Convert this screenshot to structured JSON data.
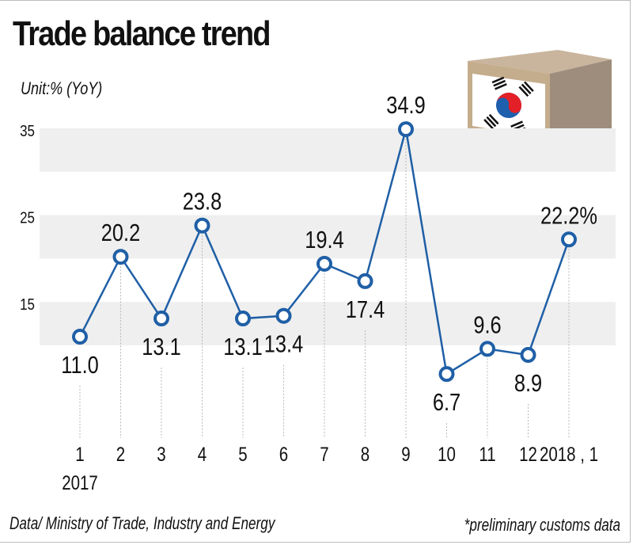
{
  "title": "Trade balance trend",
  "unit_label": "Unit:% (YoY)",
  "source": "Data/ Ministry of Trade, Industry and Energy",
  "footnote": "*preliminary customs data",
  "colors": {
    "line": "#1f5fa6",
    "band": "#efefef",
    "text": "#111111",
    "box_front": "#c4ad8c",
    "box_top": "#c9b49d",
    "box_side": "#9e8c7c",
    "flag_red": "#e32027",
    "flag_blue": "#1e5fae"
  },
  "illustration": {
    "name": "korean-flag-box-icon"
  },
  "chart_data": {
    "type": "line",
    "title": "Trade balance trend",
    "ylabel": "Unit:% (YoY)",
    "xlabel": "",
    "ylim": [
      0,
      35
    ],
    "yticks": [
      35,
      25,
      15
    ],
    "bands": [
      [
        30,
        35
      ],
      [
        20,
        25
      ],
      [
        10,
        15
      ]
    ],
    "categories": [
      "1",
      "2",
      "3",
      "4",
      "5",
      "6",
      "7",
      "8",
      "9",
      "10",
      "11",
      "12",
      "2018 , 1"
    ],
    "year_label": "2017",
    "series": [
      {
        "name": "Trade balance",
        "values": [
          11.0,
          20.2,
          13.1,
          23.8,
          13.1,
          13.4,
          19.4,
          17.4,
          34.9,
          6.7,
          9.6,
          8.9,
          22.2
        ],
        "labels": [
          "11.0",
          "20.2",
          "13.1",
          "23.8",
          "13.1",
          "13.4",
          "19.4",
          "17.4",
          "34.9",
          "6.7",
          "9.6",
          "8.9",
          "22.2%"
        ],
        "label_position": [
          "below",
          "above",
          "below",
          "above",
          "below",
          "below",
          "above",
          "below",
          "above",
          "below",
          "above",
          "below",
          "above"
        ]
      }
    ]
  }
}
